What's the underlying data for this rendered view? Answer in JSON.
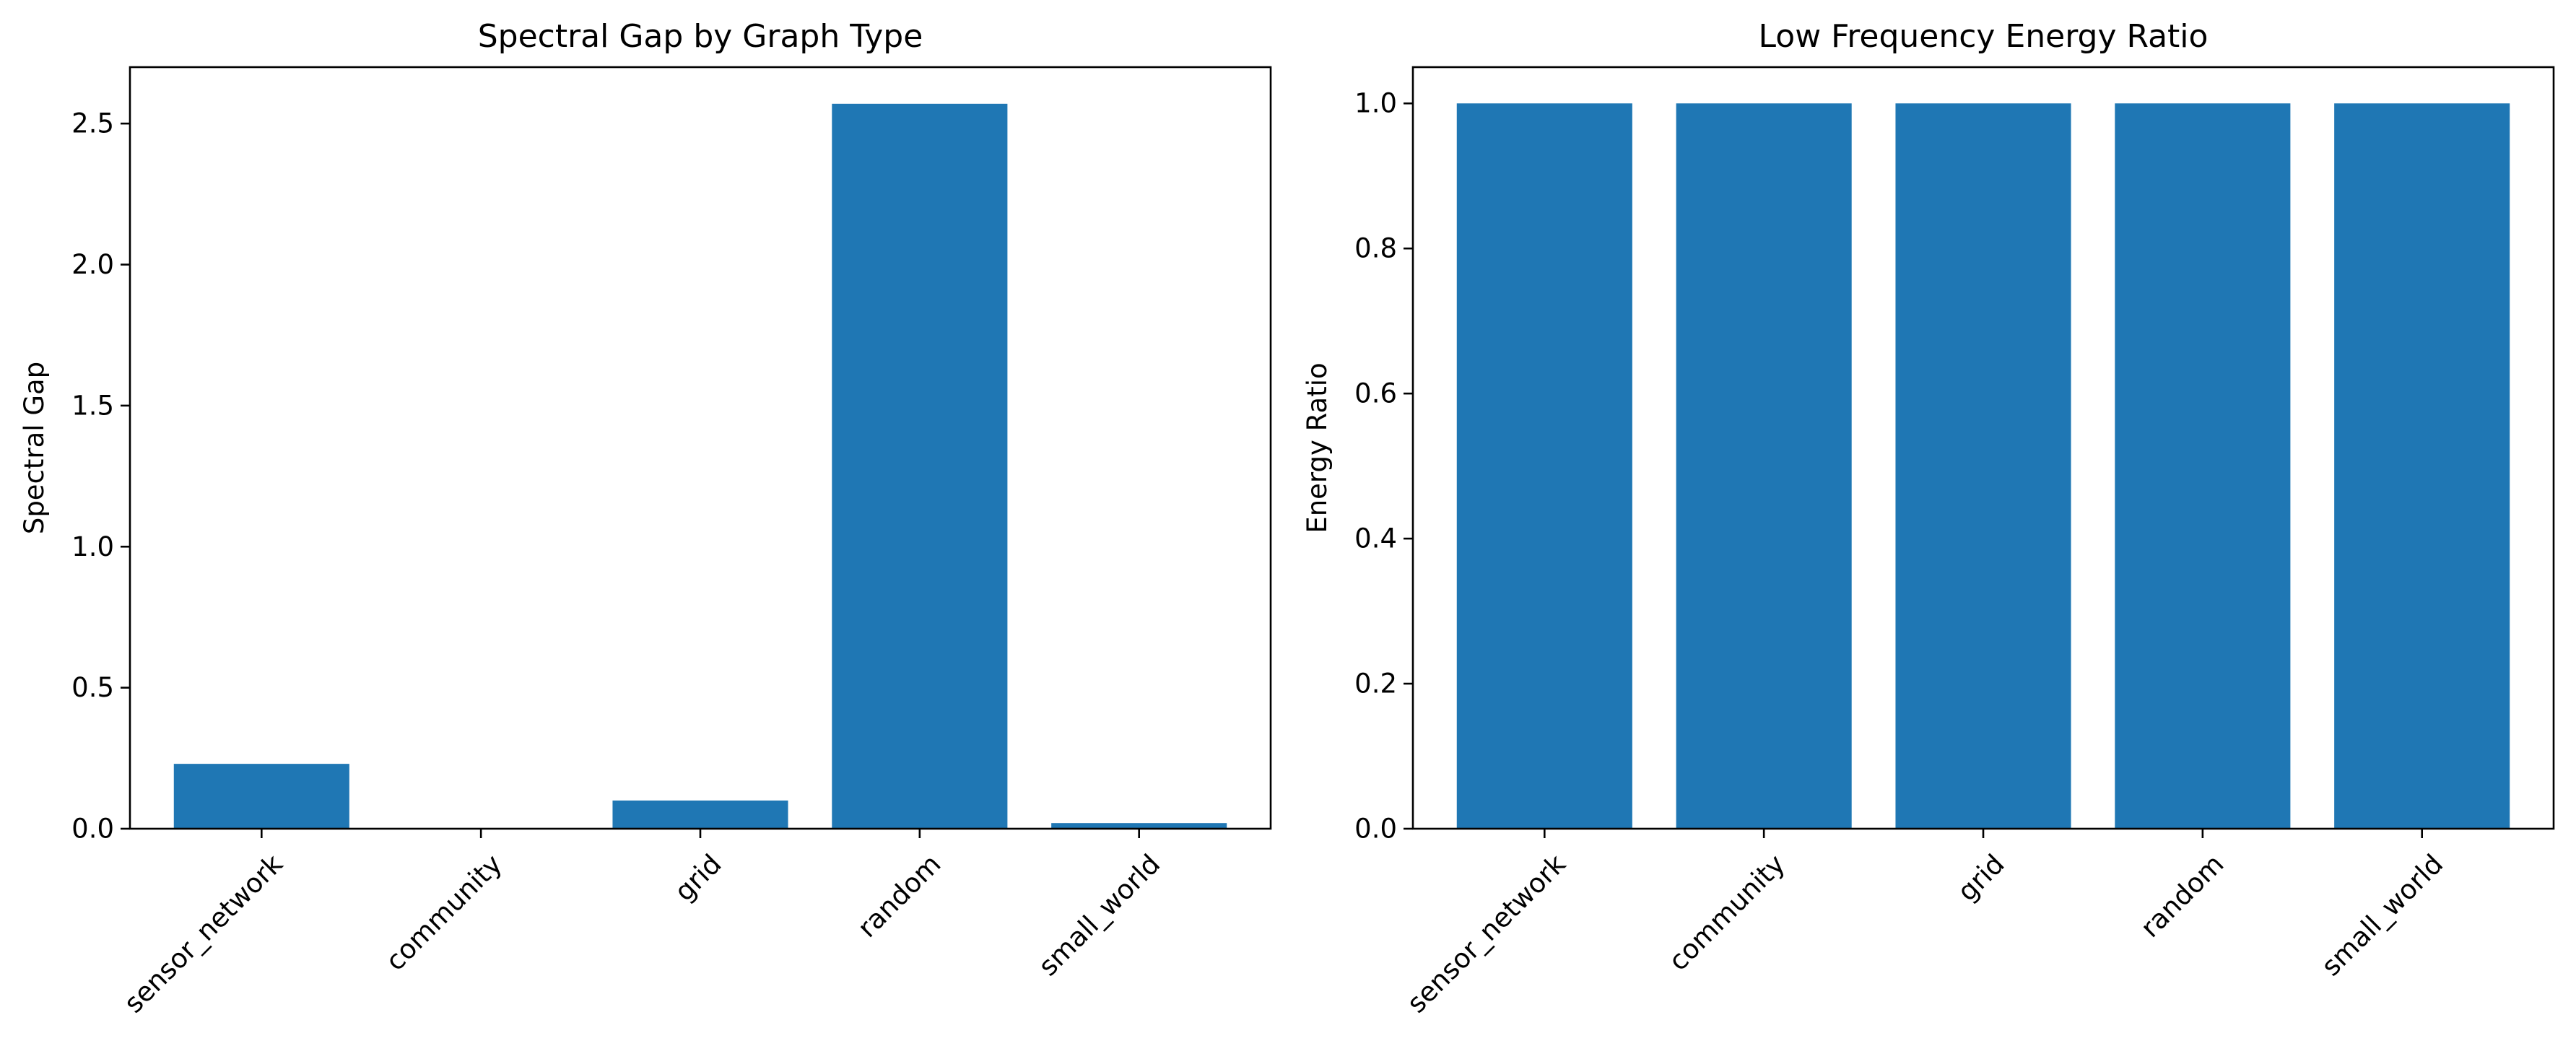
{
  "chart_data": [
    {
      "type": "bar",
      "title": "Spectral Gap by Graph Type",
      "xlabel": "",
      "ylabel": "Spectral Gap",
      "categories": [
        "sensor_network",
        "community",
        "grid",
        "random",
        "small_world"
      ],
      "values": [
        0.23,
        0.0,
        0.1,
        2.57,
        0.02
      ],
      "ylim": [
        0,
        2.7
      ],
      "yticks": [
        0.0,
        0.5,
        1.0,
        1.5,
        2.0,
        2.5
      ],
      "ytick_labels": [
        "0.0",
        "0.5",
        "1.0",
        "1.5",
        "2.0",
        "2.5"
      ],
      "bar_color": "#1f77b4",
      "grid": false,
      "xtick_rotation": 45
    },
    {
      "type": "bar",
      "title": "Low Frequency Energy Ratio",
      "xlabel": "",
      "ylabel": "Energy Ratio",
      "categories": [
        "sensor_network",
        "community",
        "grid",
        "random",
        "small_world"
      ],
      "values": [
        1.0,
        1.0,
        1.0,
        1.0,
        1.0
      ],
      "ylim": [
        0,
        1.05
      ],
      "yticks": [
        0.0,
        0.2,
        0.4,
        0.6,
        0.8,
        1.0
      ],
      "ytick_labels": [
        "0.0",
        "0.2",
        "0.4",
        "0.6",
        "0.8",
        "1.0"
      ],
      "bar_color": "#1f77b4",
      "grid": false,
      "xtick_rotation": 45
    }
  ]
}
